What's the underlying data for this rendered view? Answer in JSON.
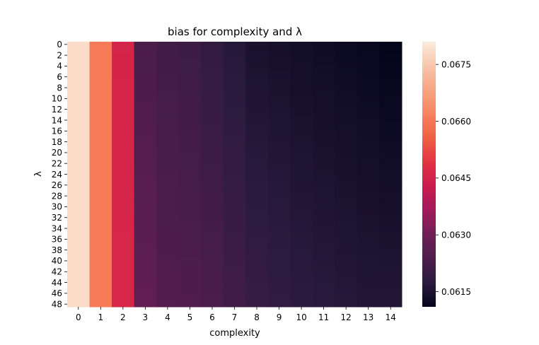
{
  "chart_data": {
    "type": "heatmap",
    "title": "bias for complexity and λ",
    "xlabel": "complexity",
    "ylabel": "λ",
    "x": [
      0,
      1,
      2,
      3,
      4,
      5,
      6,
      7,
      8,
      9,
      10,
      11,
      12,
      13,
      14
    ],
    "x_tick_labels": [
      "0",
      "1",
      "2",
      "3",
      "4",
      "5",
      "6",
      "7",
      "8",
      "9",
      "10",
      "11",
      "12",
      "13",
      "14"
    ],
    "y": [
      0,
      1,
      2,
      3,
      4,
      5,
      6,
      7,
      8,
      9,
      10,
      11,
      12,
      13,
      14,
      15,
      16,
      17,
      18,
      19,
      20,
      21,
      22,
      23,
      24,
      25,
      26,
      27,
      28,
      29,
      30,
      31,
      32,
      33,
      34,
      35,
      36,
      37,
      38,
      39,
      40,
      41,
      42,
      43,
      44,
      45,
      46,
      47,
      48
    ],
    "y_tick_labels": [
      "0",
      "2",
      "4",
      "6",
      "8",
      "10",
      "12",
      "14",
      "16",
      "18",
      "20",
      "22",
      "24",
      "26",
      "28",
      "30",
      "32",
      "34",
      "36",
      "38",
      "40",
      "42",
      "44",
      "46",
      "48"
    ],
    "column_bias_at_lambda_0": [
      0.06785,
      0.06605,
      0.06455,
      0.06235,
      0.06215,
      0.06205,
      0.06185,
      0.06165,
      0.06145,
      0.0614,
      0.06135,
      0.0613,
      0.06125,
      0.0612,
      0.0611
    ],
    "column_bias_at_lambda_48": [
      0.06785,
      0.06605,
      0.0646,
      0.06275,
      0.0625,
      0.06245,
      0.06235,
      0.06215,
      0.06195,
      0.06185,
      0.06175,
      0.0617,
      0.06165,
      0.0616,
      0.0616
    ],
    "value_variation_along_lambda": "linear",
    "colorbar": {
      "ticks": [
        0.0615,
        0.063,
        0.0645,
        0.066,
        0.0675
      ],
      "tick_labels": [
        "0.0615",
        "0.0630",
        "0.0645",
        "0.0660",
        "0.0675"
      ],
      "range": [
        0.0611,
        0.0681
      ]
    },
    "colormap": "rocket",
    "colormap_stops": [
      "#03051a",
      "#2b1b3f",
      "#4c1d4b",
      "#701f57",
      "#a11a5b",
      "#cb1b4f",
      "#e13342",
      "#f06043",
      "#f6835f",
      "#f7a482",
      "#f9c5ab",
      "#faebdd"
    ]
  }
}
